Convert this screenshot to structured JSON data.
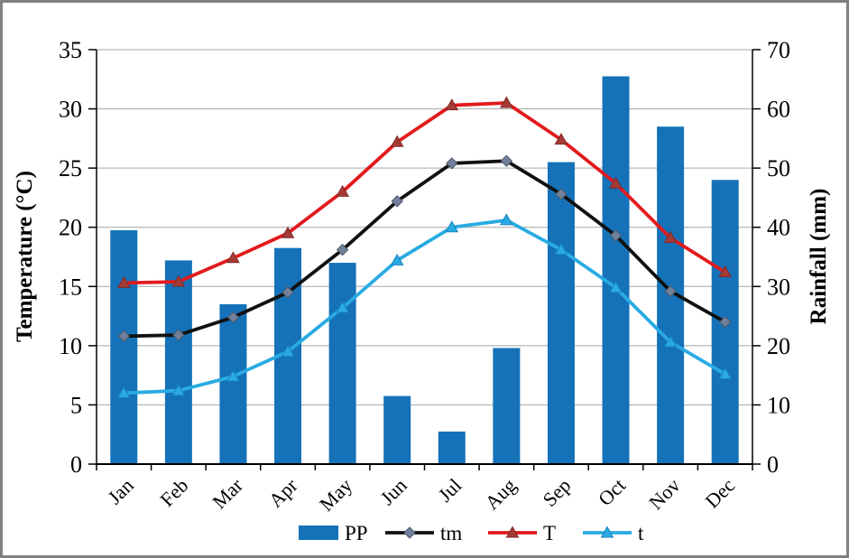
{
  "figure": {
    "background": "#FFFFFF",
    "border_color": "#808080"
  },
  "chart_data": {
    "type": "combo-bar-line",
    "categories": [
      "Jan",
      "Feb",
      "Mar",
      "Apr",
      "May",
      "Jun",
      "Jul",
      "Aug",
      "Sep",
      "Oct",
      "Nov",
      "Dec"
    ],
    "bar_series": {
      "name": "PP",
      "axis": "right",
      "color": "#1572B8",
      "values": [
        39.5,
        34.4,
        27.0,
        36.5,
        34.0,
        11.5,
        5.5,
        19.6,
        51.0,
        65.5,
        57.0,
        48.0
      ]
    },
    "line_series": [
      {
        "name": "tm",
        "axis": "left",
        "color": "#111111",
        "marker": "diamond",
        "marker_color": "#71819B",
        "marker_stroke": "#4D5A6A",
        "values": [
          10.8,
          10.9,
          12.4,
          14.5,
          18.1,
          22.2,
          25.4,
          25.6,
          22.8,
          19.3,
          14.6,
          12.0
        ]
      },
      {
        "name": "T",
        "axis": "left",
        "color": "#E21A1C",
        "marker": "triangle",
        "marker_color": "#A63B35",
        "marker_stroke": "#7E2A28",
        "values": [
          15.3,
          15.4,
          17.4,
          19.5,
          23.0,
          27.2,
          30.3,
          30.5,
          27.4,
          23.7,
          19.1,
          16.2
        ]
      },
      {
        "name": "t",
        "axis": "left",
        "color": "#29ABE2",
        "marker": "triangle",
        "marker_color": "#29ABE2",
        "marker_stroke": "#1686BE",
        "values": [
          6.0,
          6.2,
          7.4,
          9.5,
          13.2,
          17.2,
          20.0,
          20.6,
          18.1,
          14.9,
          10.3,
          7.6
        ]
      }
    ],
    "left_axis": {
      "title": "Temperature (°C)",
      "min": 0,
      "max": 35,
      "step": 5,
      "tick_labels": [
        "0",
        "5",
        "10",
        "15",
        "20",
        "25",
        "30",
        "35"
      ]
    },
    "right_axis": {
      "title": "Rainfall (mm)",
      "min": 0,
      "max": 70,
      "step": 10,
      "tick_labels": [
        "0",
        "10",
        "20",
        "30",
        "40",
        "50",
        "60",
        "70"
      ]
    },
    "legend": {
      "labels": [
        "PP",
        "tm",
        "T",
        "t"
      ]
    },
    "grid_on": true,
    "grid_color": "#A6A6A6",
    "axis_color": "#000000"
  }
}
